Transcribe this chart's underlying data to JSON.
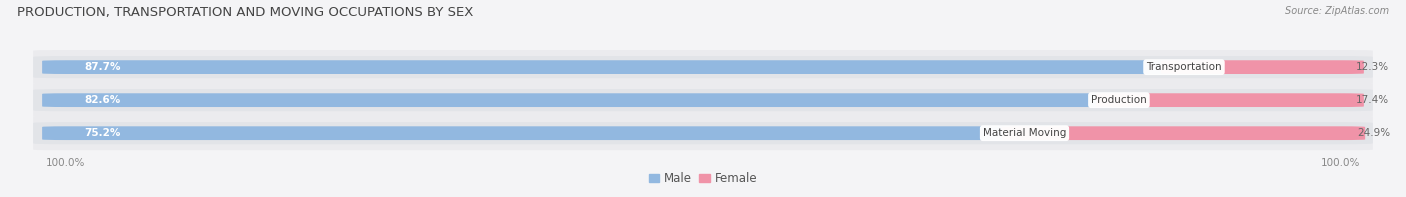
{
  "title": "PRODUCTION, TRANSPORTATION AND MOVING OCCUPATIONS BY SEX",
  "source": "Source: ZipAtlas.com",
  "categories": [
    "Transportation",
    "Production",
    "Material Moving"
  ],
  "male_pct": [
    87.7,
    82.6,
    75.2
  ],
  "female_pct": [
    12.3,
    17.4,
    24.9
  ],
  "male_color": "#92b8e0",
  "female_color": "#f093a8",
  "track_color": "#e2e4e8",
  "bg_color": "#f4f4f6",
  "row_bg_color": "#ebebee",
  "title_fontsize": 9.5,
  "source_fontsize": 7.0,
  "label_fontsize": 7.5,
  "pct_fontsize": 7.5,
  "legend_fontsize": 8.5,
  "figsize": [
    14.06,
    1.97
  ],
  "dpi": 100,
  "xlim_left": -0.04,
  "xlim_right": 1.04,
  "bar_total": 1.0,
  "label_100_left": "100.0%",
  "label_100_right": "100.0%"
}
